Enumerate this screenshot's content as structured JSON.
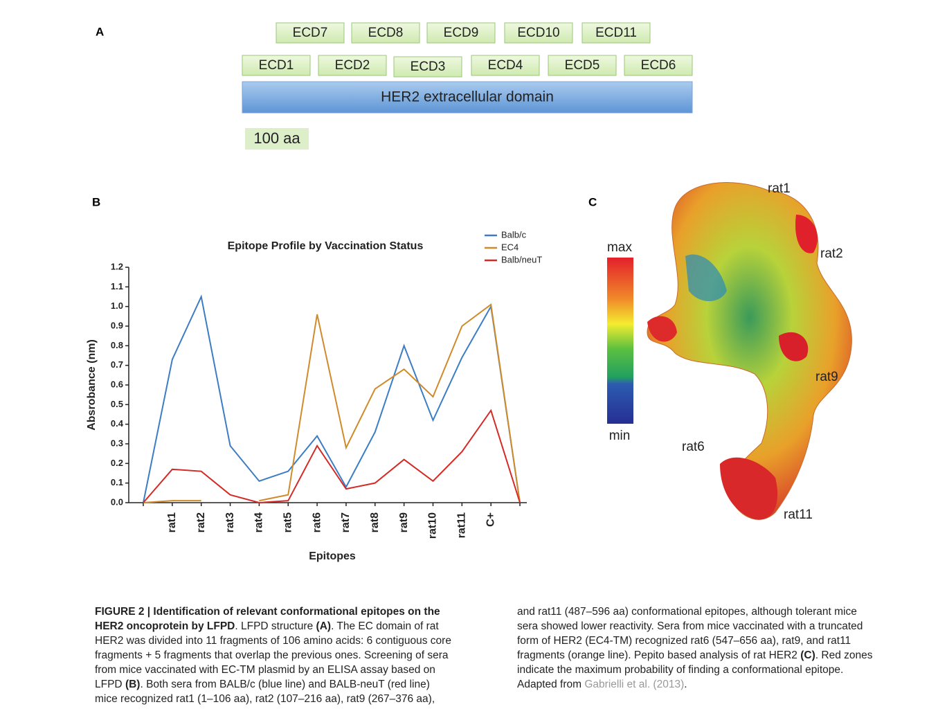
{
  "panel_labels": [
    "A",
    "B",
    "C"
  ],
  "panel_a": {
    "row_top": [
      "ECD7",
      "ECD8",
      "ECD9",
      "ECD10",
      "ECD11"
    ],
    "row_bottom": [
      "ECD1",
      "ECD2",
      "ECD3",
      "ECD4",
      "ECD5",
      "ECD6"
    ],
    "domain": "HER2 extracellular domain",
    "scale": "100 aa"
  },
  "chart_data": {
    "type": "line",
    "title": "Epitope Profile by Vaccination Status",
    "x_label": "Epitopes",
    "y_label": "Absrobance (nm)",
    "categories": [
      null,
      "rat1",
      "rat2",
      "rat3",
      "rat4",
      "rat5",
      "rat6",
      "rat7",
      "rat8",
      "rat9",
      "rat10",
      "rat11",
      "C+",
      null
    ],
    "series": [
      {
        "name": "Balb/c",
        "color": "#3b7cc4",
        "values": [
          0,
          0.73,
          1.05,
          0.29,
          0.11,
          0.16,
          0.34,
          0.08,
          0.36,
          0.8,
          0.42,
          0.74,
          1.0,
          0
        ]
      },
      {
        "name": "EC4",
        "color": "#d08a2a",
        "values": [
          0,
          0.01,
          0.01,
          null,
          0.01,
          0.04,
          0.96,
          0.28,
          0.58,
          0.68,
          0.54,
          0.9,
          1.01,
          0
        ]
      },
      {
        "name": "Balb/neuT",
        "color": "#d42a26",
        "values": [
          0,
          0.17,
          0.16,
          0.04,
          0.0,
          0.01,
          0.29,
          0.07,
          0.1,
          0.22,
          0.11,
          0.26,
          0.47,
          0
        ]
      }
    ],
    "ylim": [
      0,
      1.2
    ],
    "yticks": [
      {
        "value": 0,
        "label": "0.0"
      },
      0.1,
      0.2,
      0.3,
      0.4,
      0.5,
      0.6,
      0.7,
      0.8,
      0.9,
      {
        "value": 1,
        "label": "1.0"
      },
      1.1,
      1.2
    ],
    "legend": "top-right"
  },
  "panel_c": {
    "scale_max": "max",
    "scale_min": "min",
    "labels": [
      "rat1",
      "rat2",
      "rat9",
      "rat6",
      "rat11"
    ]
  },
  "caption": {
    "segments": [
      "FIGURE 2 | Identification of relevant conformational epitopes on the HER2 oncoprotein by LFPD",
      ". LFPD structure ",
      "(A)",
      ". The EC domain of rat HER2 was divided into 11 fragments of 106 amino acids: 6 contiguous core fragments + 5 fragments that overlap the previous ones. Screening of sera from mice vaccinated with EC-TM plasmid by an ELISA assay based on LFPD ",
      "(B)",
      ". Both sera from BALB/c (blue line) and BALB-neuT (red line) mice recognized rat1 (1–106 aa), rat2 (107–216 aa), rat9 (267–376 aa), and rat11 (487–596 aa) conformational epitopes, although tolerant mice sera showed lower reactivity. Sera from mice vaccinated with a truncated form of HER2 (EC4-TM) recognized rat6 (547–656 aa), rat9, and rat11 fragments (orange line). Pepito based analysis of rat HER2 ",
      "(C)",
      ". Red zones indicate the maximum probability of finding a conformational epitope. Adapted from ",
      "Gabrielli et al. (2013)",
      "."
    ]
  }
}
